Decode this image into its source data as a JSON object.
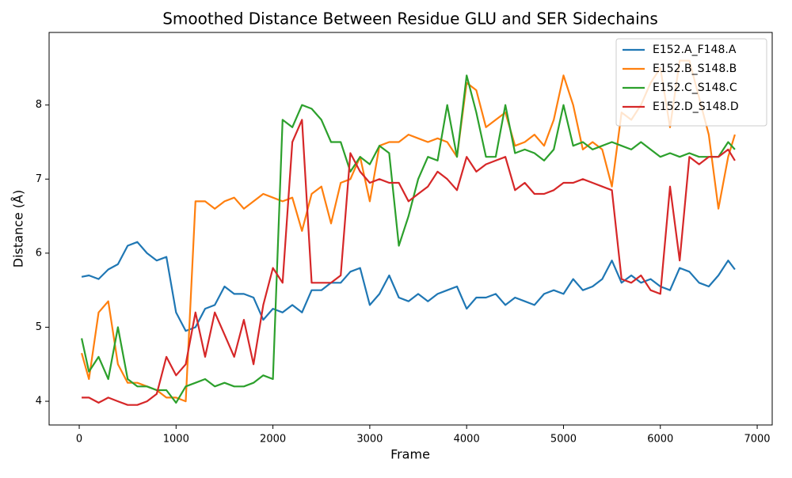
{
  "chart_data": {
    "type": "line",
    "title": "Smoothed Distance Between Residue GLU and SER Sidechains",
    "xlabel": "Frame",
    "ylabel": "Distance (Å)",
    "xlim": [
      -311,
      7155
    ],
    "ylim": [
      3.68,
      8.98
    ],
    "xticks": [
      0,
      1000,
      2000,
      3000,
      4000,
      5000,
      6000,
      7000
    ],
    "yticks": [
      4,
      5,
      6,
      7,
      8
    ],
    "grid": false,
    "legend": "upper right",
    "x": [
      25,
      100,
      200,
      300,
      400,
      500,
      600,
      700,
      800,
      900,
      1000,
      1100,
      1200,
      1300,
      1400,
      1500,
      1600,
      1700,
      1800,
      1900,
      2000,
      2100,
      2200,
      2300,
      2400,
      2500,
      2600,
      2700,
      2800,
      2900,
      3000,
      3100,
      3200,
      3300,
      3400,
      3500,
      3600,
      3700,
      3800,
      3900,
      4000,
      4100,
      4200,
      4300,
      4400,
      4500,
      4600,
      4700,
      4800,
      4900,
      5000,
      5100,
      5200,
      5300,
      5400,
      5500,
      5600,
      5700,
      5800,
      5900,
      6000,
      6100,
      6200,
      6300,
      6400,
      6500,
      6600,
      6700,
      6770
    ],
    "series": [
      {
        "name": "E152.A_F148.A",
        "color": "#1f77b4",
        "values": [
          5.68,
          5.7,
          5.65,
          5.78,
          5.85,
          6.1,
          6.15,
          6.0,
          5.9,
          5.95,
          5.2,
          4.95,
          5.0,
          5.25,
          5.3,
          5.55,
          5.45,
          5.45,
          5.4,
          5.1,
          5.25,
          5.2,
          5.3,
          5.2,
          5.5,
          5.5,
          5.6,
          5.6,
          5.75,
          5.8,
          5.3,
          5.45,
          5.7,
          5.4,
          5.35,
          5.45,
          5.35,
          5.45,
          5.5,
          5.55,
          5.25,
          5.4,
          5.4,
          5.45,
          5.3,
          5.4,
          5.35,
          5.3,
          5.45,
          5.5,
          5.45,
          5.65,
          5.5,
          5.55,
          5.65,
          5.9,
          5.6,
          5.7,
          5.6,
          5.65,
          5.55,
          5.5,
          5.8,
          5.75,
          5.6,
          5.55,
          5.7,
          5.9,
          5.78
        ]
      },
      {
        "name": "E152.B_S148.B",
        "color": "#ff7f0e",
        "values": [
          4.65,
          4.3,
          5.2,
          5.35,
          4.5,
          4.25,
          4.25,
          4.2,
          4.15,
          4.05,
          4.05,
          4.0,
          6.7,
          6.7,
          6.6,
          6.7,
          6.75,
          6.6,
          6.7,
          6.8,
          6.75,
          6.7,
          6.75,
          6.3,
          6.8,
          6.9,
          6.4,
          6.95,
          7.0,
          7.3,
          6.7,
          7.45,
          7.5,
          7.5,
          7.6,
          7.55,
          7.5,
          7.55,
          7.5,
          7.3,
          8.3,
          8.2,
          7.7,
          7.8,
          7.9,
          7.45,
          7.5,
          7.6,
          7.45,
          7.8,
          8.4,
          8.0,
          7.4,
          7.5,
          7.4,
          6.9,
          7.9,
          7.8,
          8.0,
          8.3,
          8.5,
          7.7,
          8.6,
          8.6,
          8.1,
          7.6,
          6.6,
          7.3,
          7.6
        ]
      },
      {
        "name": "E152.C_S148.C",
        "color": "#2ca02c",
        "values": [
          4.85,
          4.4,
          4.6,
          4.3,
          5.0,
          4.3,
          4.2,
          4.2,
          4.15,
          4.15,
          3.98,
          4.2,
          4.25,
          4.3,
          4.2,
          4.25,
          4.2,
          4.2,
          4.25,
          4.35,
          4.3,
          7.8,
          7.7,
          8.0,
          7.95,
          7.8,
          7.5,
          7.5,
          7.1,
          7.3,
          7.2,
          7.45,
          7.35,
          6.1,
          6.5,
          7.0,
          7.3,
          7.25,
          8.0,
          7.3,
          8.4,
          7.9,
          7.3,
          7.3,
          8.0,
          7.35,
          7.4,
          7.35,
          7.25,
          7.4,
          8.0,
          7.45,
          7.5,
          7.4,
          7.45,
          7.5,
          7.45,
          7.4,
          7.5,
          7.4,
          7.3,
          7.35,
          7.3,
          7.35,
          7.3,
          7.3,
          7.3,
          7.5,
          7.4
        ]
      },
      {
        "name": "E152.D_S148.D",
        "color": "#d62728",
        "values": [
          4.05,
          4.05,
          3.98,
          4.05,
          4.0,
          3.95,
          3.95,
          4.0,
          4.1,
          4.6,
          4.35,
          4.5,
          5.2,
          4.6,
          5.2,
          4.9,
          4.6,
          5.1,
          4.5,
          5.3,
          5.8,
          5.6,
          7.5,
          7.8,
          5.6,
          5.6,
          5.6,
          5.7,
          7.35,
          7.1,
          6.95,
          7.0,
          6.95,
          6.95,
          6.7,
          6.8,
          6.9,
          7.1,
          7.0,
          6.85,
          7.3,
          7.1,
          7.2,
          7.25,
          7.3,
          6.85,
          6.95,
          6.8,
          6.8,
          6.85,
          6.95,
          6.95,
          7.0,
          6.95,
          6.9,
          6.85,
          5.65,
          5.6,
          5.7,
          5.5,
          5.45,
          6.9,
          5.9,
          7.3,
          7.2,
          7.3,
          7.3,
          7.4,
          7.25
        ]
      }
    ]
  }
}
